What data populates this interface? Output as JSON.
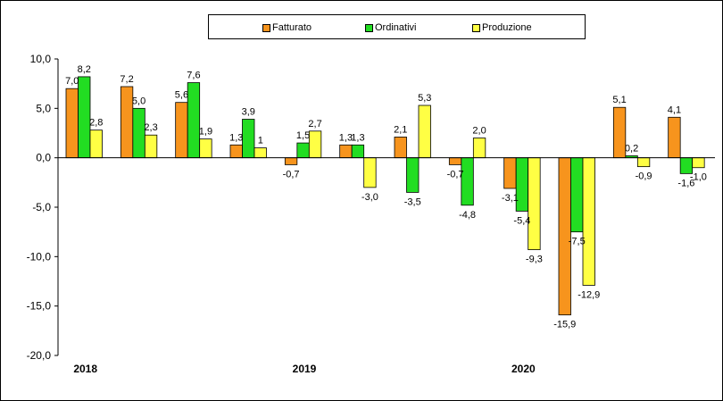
{
  "chart_data": {
    "type": "bar",
    "categories": [
      "2018",
      "",
      "",
      "",
      "2019",
      "",
      "",
      "",
      "2020",
      "",
      "",
      ""
    ],
    "series": [
      {
        "name": "Fatturato",
        "color": "#f7941d",
        "values": [
          7.0,
          7.2,
          5.6,
          1.3,
          -0.7,
          1.3,
          2.1,
          -0.7,
          -3.1,
          -15.9,
          5.1,
          4.1
        ],
        "labels": [
          "7,0",
          "7,2",
          "5,6",
          "1,3",
          "-0,7",
          "1,3",
          "2,1",
          "-0,7",
          "-3,1",
          "-15,9",
          "5,1",
          "4,1"
        ]
      },
      {
        "name": "Ordinativi",
        "color": "#22dd22",
        "values": [
          8.2,
          5.0,
          7.6,
          3.9,
          1.5,
          1.3,
          -3.5,
          -4.8,
          -5.4,
          -7.5,
          0.2,
          -1.6
        ],
        "labels": [
          "8,2",
          "5,0",
          "7,6",
          "3,9",
          "1,5",
          "1,3",
          "-3,5",
          "-4,8",
          "-5,4",
          "-7,5",
          "0,2",
          "-1,6"
        ]
      },
      {
        "name": "Produzione",
        "color": "#ffff44",
        "values": [
          2.8,
          2.3,
          1.9,
          1.0,
          2.7,
          -3.0,
          5.3,
          2.0,
          -9.3,
          -12.9,
          -0.9,
          -1.0
        ],
        "labels": [
          "2,8",
          "2,3",
          "1,9",
          "1",
          "2,7",
          "-3,0",
          "5,3",
          "2,0",
          "-9,3",
          "-12,9",
          "-0,9",
          "-1,0"
        ]
      }
    ],
    "y_ticks": [
      "10,0",
      "5,0",
      "0,0",
      "-5,0",
      "-10,0",
      "-15,0",
      "-20,0"
    ],
    "ylim": [
      -20,
      10
    ],
    "legend_position": "top",
    "grid": false
  }
}
